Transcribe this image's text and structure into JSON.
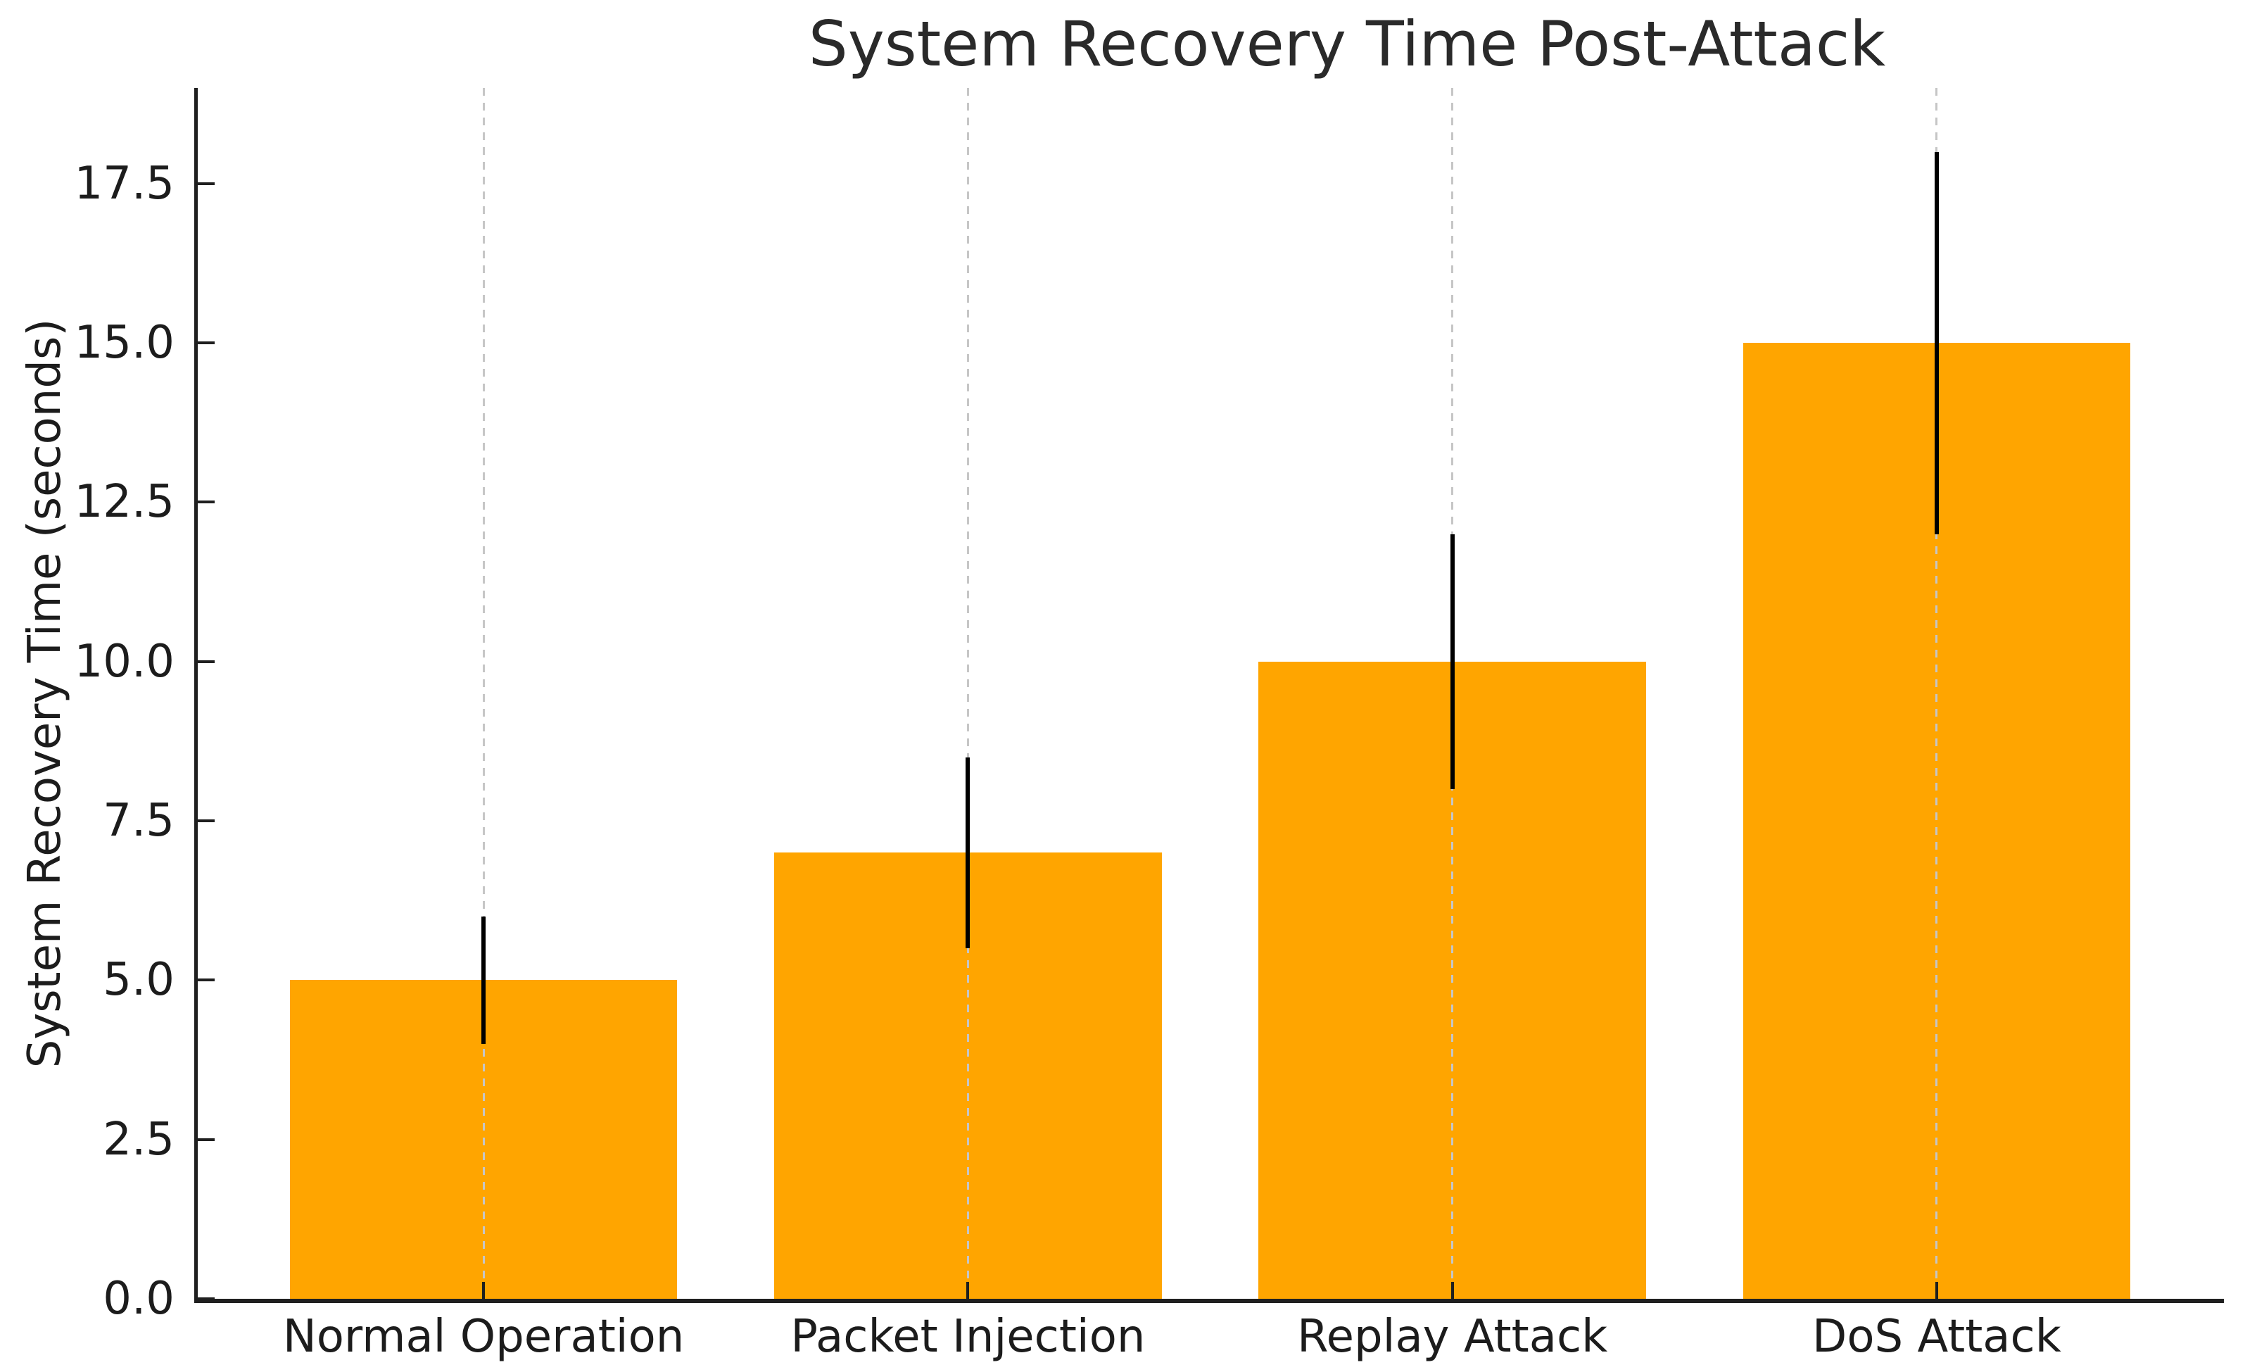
{
  "chart_data": {
    "type": "bar",
    "title": "System Recovery Time Post-Attack",
    "ylabel": "System Recovery Time (seconds)",
    "xlabel": "",
    "categories": [
      "Normal Operation",
      "Packet Injection",
      "Replay Attack",
      "DoS Attack"
    ],
    "values": [
      5,
      7,
      10,
      15
    ],
    "error": [
      1,
      1.5,
      2,
      3
    ],
    "error_ranges": [
      [
        4,
        6
      ],
      [
        5.5,
        8.5
      ],
      [
        8,
        12
      ],
      [
        12,
        18
      ]
    ],
    "yticks": [
      "0.0",
      "2.5",
      "5.0",
      "7.5",
      "10.0",
      "12.5",
      "15.0",
      "17.5"
    ],
    "ylim": [
      0,
      19.0
    ],
    "bar_color": "#FFA500",
    "error_bar_color": "#000000",
    "gridline_color": "#c6c6c6",
    "grid": "vertical-dashed-at-categories",
    "legend": "none",
    "tick_direction": "in"
  }
}
